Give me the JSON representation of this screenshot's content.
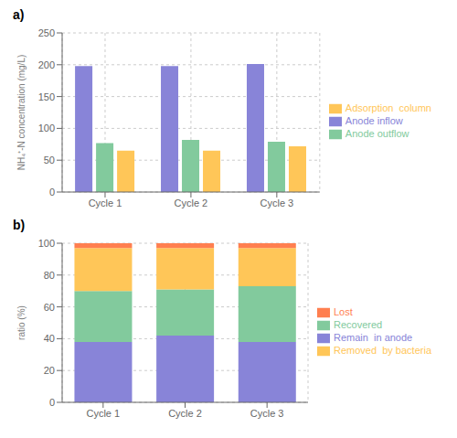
{
  "chart_data": [
    {
      "type": "bar",
      "title": "a)",
      "categories": [
        "Cycle 1",
        "Cycle 2",
        "Cycle 3"
      ],
      "series": [
        {
          "name": "Anode inflow",
          "values": [
            198,
            198,
            201
          ]
        },
        {
          "name": "Anode outflow",
          "values": [
            77,
            82,
            79
          ]
        },
        {
          "name": "Adsorption  column",
          "values": [
            65,
            65,
            72
          ]
        }
      ],
      "ylabel": "NH₄⁺-N concentration (mg/L)",
      "ylim": [
        0,
        250
      ],
      "yticks": [
        0,
        50,
        100,
        150,
        200,
        250
      ]
    },
    {
      "type": "bar",
      "title": "b)",
      "stacked": true,
      "categories": [
        "Cycle 1",
        "Cycle 2",
        "Cycle 3"
      ],
      "series": [
        {
          "name": "Remain  in anode",
          "values": [
            38,
            42,
            38
          ]
        },
        {
          "name": "Recovered",
          "values": [
            32,
            29,
            35
          ]
        },
        {
          "name": "Removed  by bacteria",
          "values": [
            27,
            26,
            24
          ]
        },
        {
          "name": "Lost",
          "values": [
            3,
            3,
            3
          ]
        }
      ],
      "ylabel": "ratio (%)",
      "ylim": [
        0,
        100
      ],
      "yticks": [
        0,
        20,
        40,
        60,
        80,
        100
      ]
    }
  ]
}
